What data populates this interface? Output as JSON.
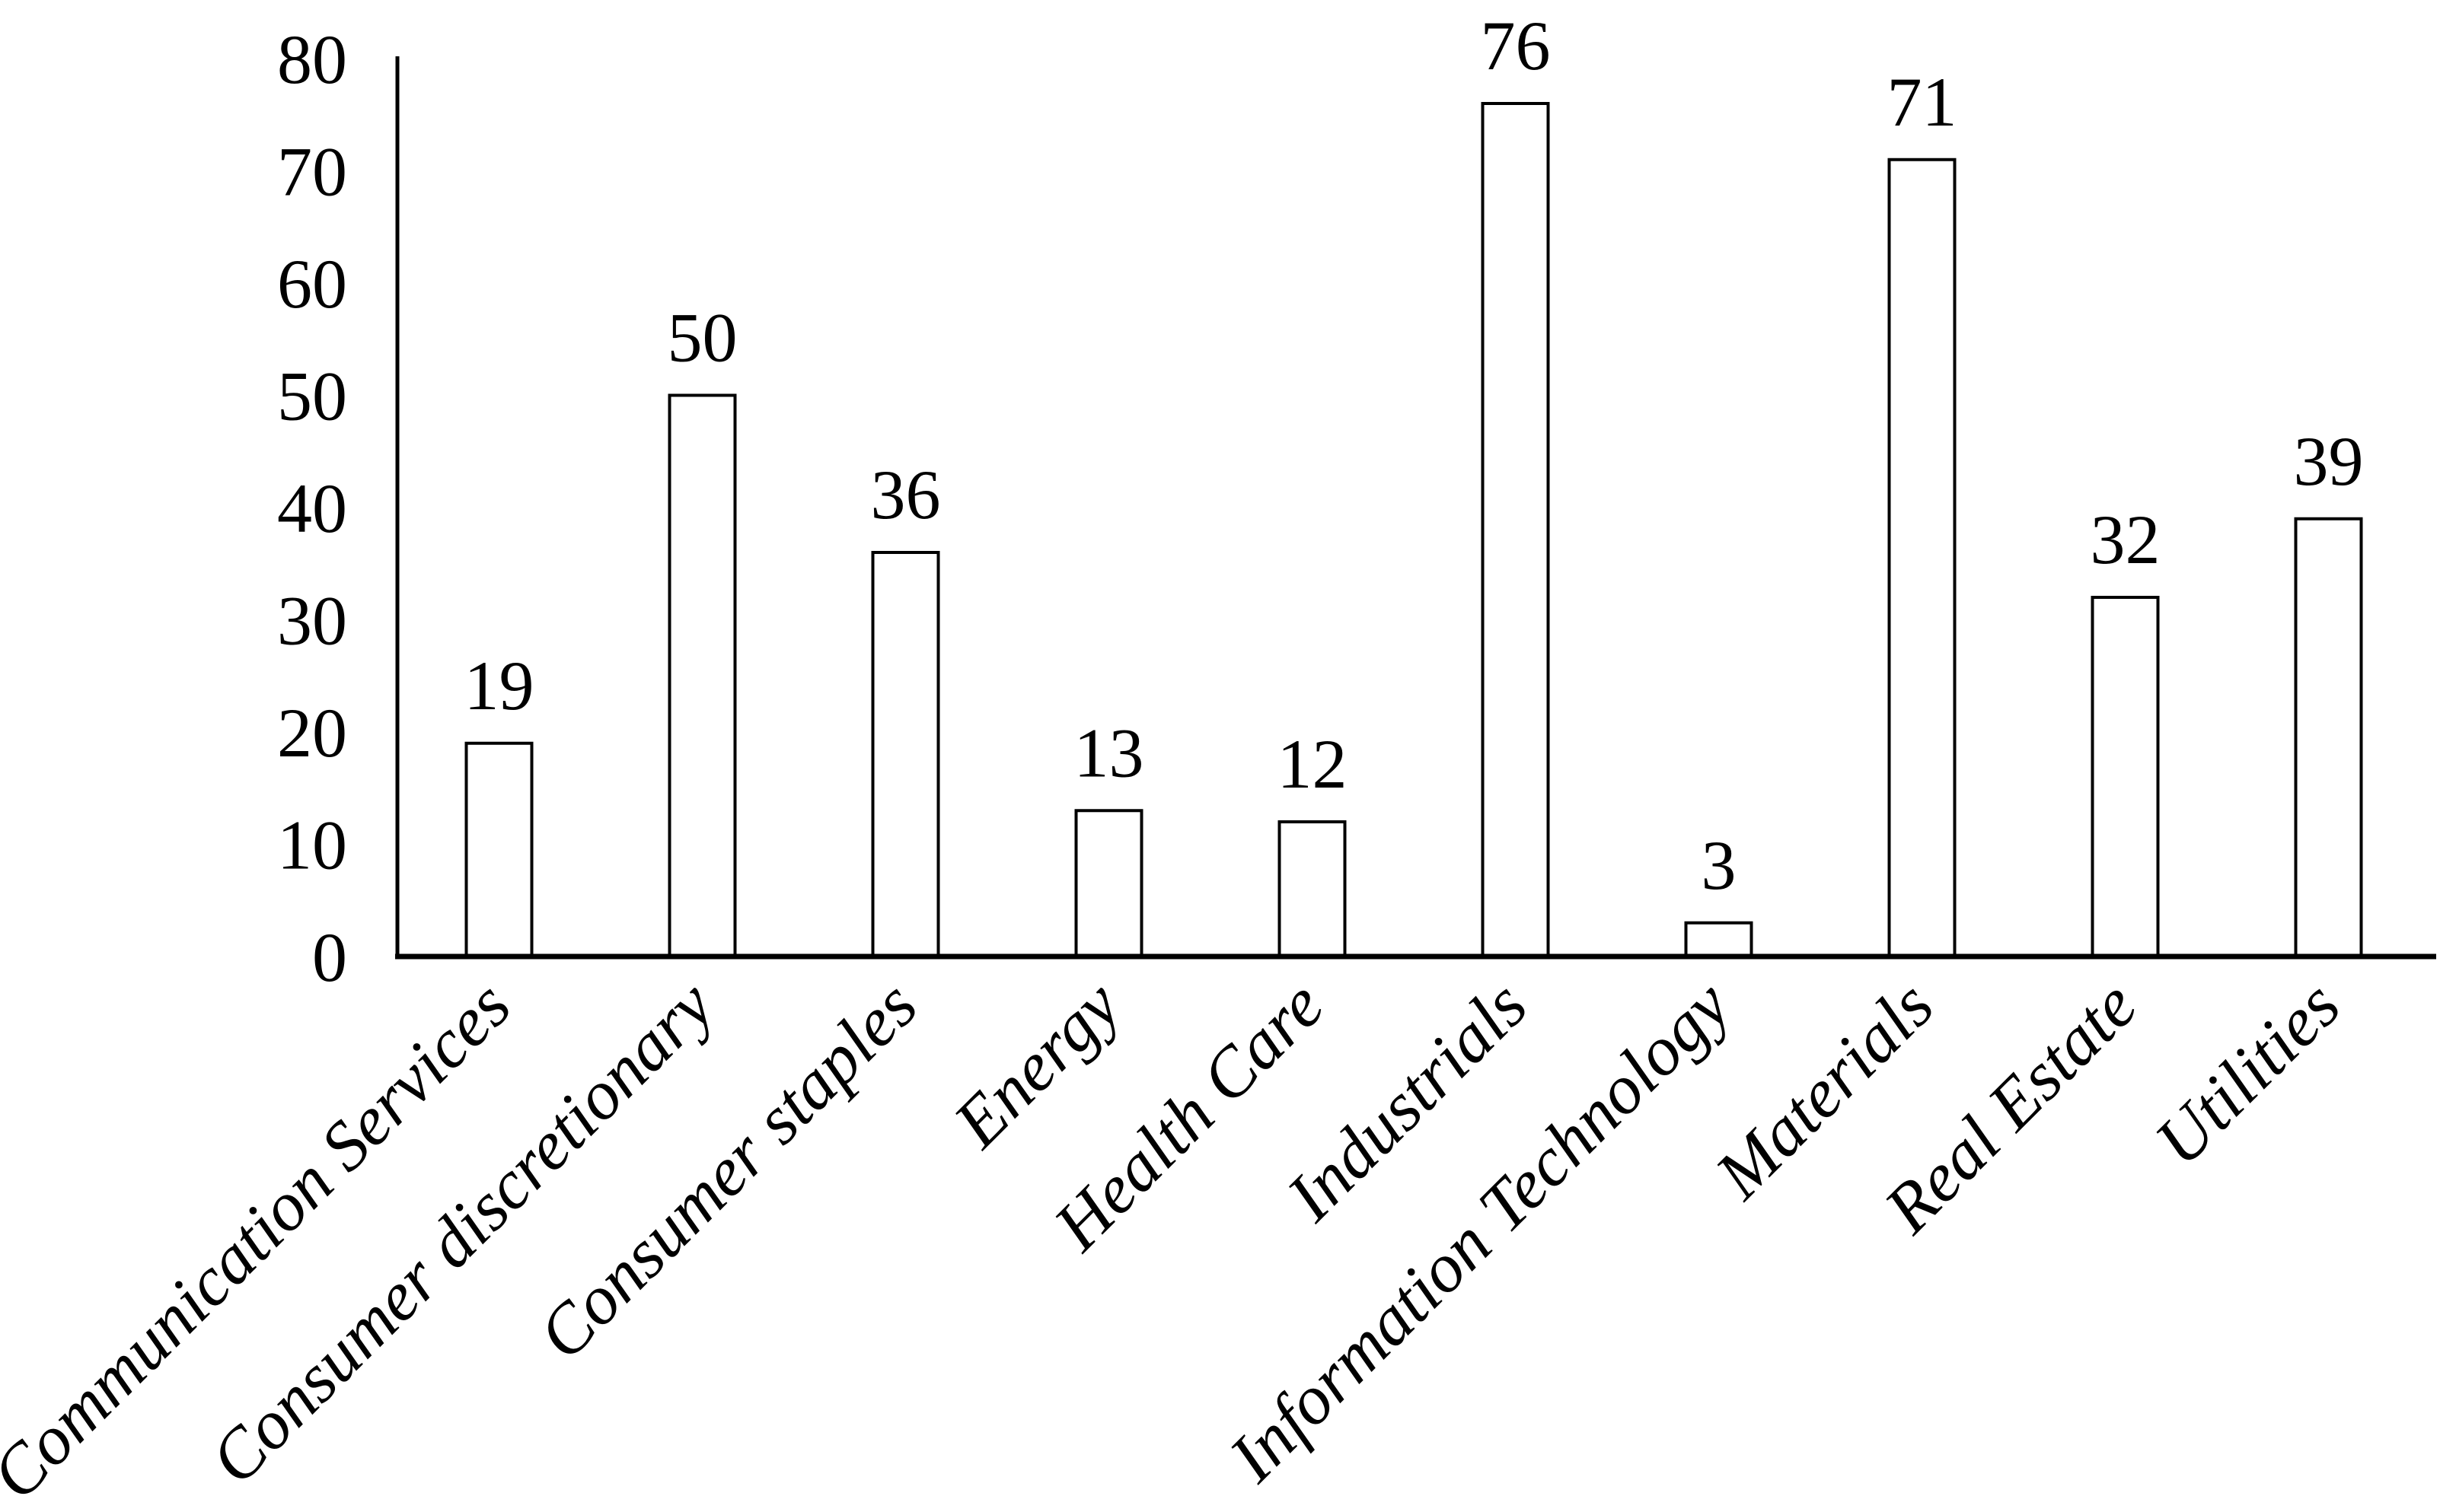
{
  "chart_data": {
    "type": "bar",
    "title": "",
    "xlabel": "",
    "ylabel": "",
    "categories": [
      "Communication Services",
      "Consumer discretionary",
      "Consumer staples",
      "Energy",
      "Health Care",
      "Industrials",
      "Information Technology",
      "Materials",
      "Real Estate",
      "Utilities"
    ],
    "values": [
      19,
      50,
      36,
      13,
      12,
      76,
      3,
      71,
      32,
      39
    ],
    "value_labels": [
      "19",
      "50",
      "36",
      "13",
      "12",
      "76",
      "3",
      "71",
      "32",
      "39"
    ],
    "ylim": [
      0,
      80
    ],
    "ytick_step": 10,
    "ytick_labels": [
      "0",
      "10",
      "20",
      "30",
      "40",
      "50",
      "60",
      "70",
      "80"
    ],
    "grid": false,
    "legend_position": "none",
    "x_label_rotation_deg": -45,
    "colors": {
      "background": "#ffffff",
      "bar_fill": "#ffffff",
      "bar_stroke": "#000000",
      "axis": "#000000",
      "text": "#000000"
    }
  }
}
